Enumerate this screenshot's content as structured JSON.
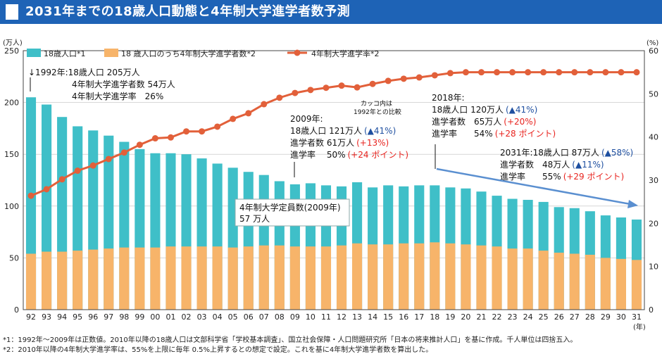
{
  "header": {
    "title": "2031年までの18歳人口動態と4年制大学進学者数予測"
  },
  "colors": {
    "population": "#3fbfc8",
    "enrollees": "#f7b46a",
    "rate": "#e2603a",
    "header": "#1e63b6",
    "arrow": "#5a8fd0",
    "red": "#e8231e",
    "blue": "#1e4fa0"
  },
  "chart_data": {
    "type": "bar",
    "categories": [
      "92",
      "93",
      "94",
      "95",
      "96",
      "97",
      "98",
      "99",
      "00",
      "01",
      "02",
      "03",
      "04",
      "05",
      "06",
      "07",
      "08",
      "09",
      "10",
      "11",
      "12",
      "13",
      "14",
      "15",
      "16",
      "17",
      "18",
      "19",
      "20",
      "21",
      "22",
      "23",
      "24",
      "25",
      "26",
      "27",
      "28",
      "29",
      "30",
      "31"
    ],
    "series": [
      {
        "name": "18歳人口*1",
        "type": "bar",
        "axis": "left",
        "values": [
          205,
          198,
          186,
          177,
          173,
          168,
          162,
          155,
          151,
          151,
          150,
          146,
          141,
          137,
          133,
          130,
          124,
          121,
          122,
          120,
          119,
          123,
          118,
          120,
          119,
          120,
          120,
          118,
          117,
          114,
          110,
          107,
          106,
          104,
          99,
          98,
          95,
          91,
          89,
          87
        ]
      },
      {
        "name": "18 歳人口のうち4年制大学進学者数*2",
        "type": "bar",
        "axis": "left",
        "values": [
          54,
          56,
          56,
          57,
          58,
          59,
          60,
          60,
          60,
          61,
          61,
          61,
          61,
          60,
          61,
          62,
          62,
          61,
          61,
          61,
          62,
          64,
          63,
          63,
          64,
          64,
          65,
          64,
          63,
          62,
          61,
          59,
          59,
          57,
          55,
          54,
          53,
          50,
          49,
          48
        ]
      },
      {
        "name": "4年制大学進学率*2",
        "type": "line",
        "axis": "right",
        "values": [
          26.4,
          27.9,
          30.2,
          32.2,
          33.4,
          34.9,
          36.4,
          38.2,
          39.7,
          39.9,
          41.3,
          41.3,
          42.4,
          44.2,
          45.5,
          47.6,
          49.1,
          50.2,
          50.9,
          51.4,
          51.9,
          51.5,
          52.3,
          53.0,
          53.5,
          53.8,
          54.3,
          54.8,
          55,
          55,
          55,
          55,
          55,
          55,
          55,
          55,
          55,
          55,
          55,
          55
        ]
      }
    ],
    "units": {
      "left": "(万人)",
      "right": "(%)",
      "x": "(年)"
    },
    "ylim_left": [
      0,
      250
    ],
    "ylim_right": [
      0,
      60
    ],
    "left_ticks": [
      "0",
      "50",
      "100",
      "150",
      "200",
      "250"
    ],
    "right_ticks": [
      "0",
      "10",
      "20",
      "30",
      "40",
      "50",
      "60"
    ],
    "legend": [
      "18歳人口*1",
      "18 歳人口のうち4年制大学進学者数*2",
      "4年制大学進学率*2"
    ],
    "annotations": {
      "y1992": [
        "↓1992年:18歳人口 205万人",
        "4年制大学進学者数 54万人",
        "4年制大学進学率　26%"
      ],
      "y2009": {
        "title": "2009年:",
        "rows": [
          {
            "label": "18歳人口 121万人",
            "blue": "(▲41%)",
            "red": ""
          },
          {
            "label": "進学者数 61万人",
            "blue": "",
            "red": "(+13%)"
          },
          {
            "label": "進学率　 50%",
            "blue": "",
            "red": "(+24 ポイント)"
          }
        ]
      },
      "kakko": [
        "カッコ内は",
        "1992年との比較"
      ],
      "y2018": {
        "title": "2018年:",
        "rows": [
          {
            "label": "18歳人口 120万人",
            "blue": "(▲41%)",
            "red": ""
          },
          {
            "label": "進学者数　65万人",
            "blue": "",
            "red": "(+20%)"
          },
          {
            "label": "進学率　　54%",
            "blue": "",
            "red": "(+28 ポイント)"
          }
        ]
      },
      "y2031": {
        "rows": [
          {
            "label": "2031年:18歳人口 87万人",
            "blue": "(▲58%)",
            "red": ""
          },
          {
            "label": "進学者数　48万人",
            "blue": "(▲11%)",
            "red": ""
          },
          {
            "label": "進学率　　55%",
            "blue": "",
            "red": "(+29 ポイント)"
          }
        ]
      },
      "capacity": [
        "4年制大学定員数(2009年)",
        "57 万人"
      ]
    }
  },
  "footnotes": [
    "*1：1992年〜2009年は正数値。2010年以降の18歳人口は文部科学省「学校基本調査」、国立社会保障・人口問題研究所「日本の将来推計人口」を基に作成。千人単位は四捨五入。",
    "*2：2010年以降の4年制大学進学率は、55%を上限に毎年 0.5%上昇するとの想定で設定。これを基に4年制大学進学者数を算出した。"
  ]
}
